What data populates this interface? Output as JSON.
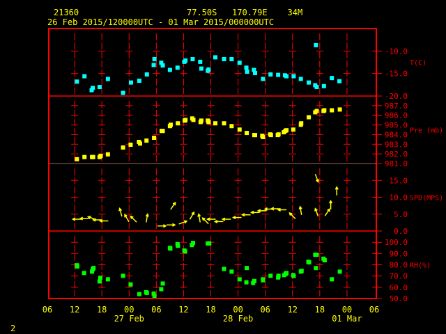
{
  "header": {
    "station_id": "21360",
    "location": "77.50S   170.79E    34M",
    "period": "26 Feb 2015/120000UTC - 01 Mar 2015/000000UTC",
    "page_number": "2"
  },
  "colors": {
    "frame": "#ff0000",
    "text": "#ffff00",
    "temperature": "#00ffff",
    "pressure": "#ffff00",
    "wind": "#ffff00",
    "humidity": "#00ff00",
    "background": "#000000"
  },
  "chart_data": [
    {
      "type": "scatter",
      "ylabel": "T(C)",
      "ylim": [
        -20,
        -5
      ],
      "yticks": [
        {
          "value": -10,
          "label": "-10.0"
        },
        {
          "value": -15,
          "label": "-15.0"
        },
        {
          "value": -20,
          "label": "-20.0"
        }
      ],
      "grid": true,
      "points": [
        [
          "2015-02-26T12:30",
          -16.8
        ],
        [
          "2015-02-26T14:10",
          -15.6
        ],
        [
          "2015-02-26T15:45",
          -18.7
        ],
        [
          "2015-02-26T16:00",
          -18.2
        ],
        [
          "2015-02-26T17:30",
          -18.0
        ],
        [
          "2015-02-26T19:20",
          -16.2
        ],
        [
          "2015-02-26T22:40",
          -19.3
        ],
        [
          "2015-02-27T00:25",
          -17.0
        ],
        [
          "2015-02-27T02:15",
          -16.6
        ],
        [
          "2015-02-27T03:55",
          -15.2
        ],
        [
          "2015-02-27T05:25",
          -13.1
        ],
        [
          "2015-02-27T05:35",
          -11.8
        ],
        [
          "2015-02-27T07:05",
          -12.6
        ],
        [
          "2015-02-27T07:25",
          -13.2
        ],
        [
          "2015-02-27T09:00",
          -14.2
        ],
        [
          "2015-02-27T10:40",
          -13.7
        ],
        [
          "2015-02-27T12:10",
          -12.4
        ],
        [
          "2015-02-27T12:25",
          -12.1
        ],
        [
          "2015-02-27T14:00",
          -11.8
        ],
        [
          "2015-02-27T15:40",
          -12.4
        ],
        [
          "2015-02-27T15:55",
          -13.9
        ],
        [
          "2015-02-27T17:20",
          -14.4
        ],
        [
          "2015-02-27T17:30",
          -14.1
        ],
        [
          "2015-02-27T19:00",
          -11.4
        ],
        [
          "2015-02-27T20:55",
          -11.8
        ],
        [
          "2015-02-27T22:35",
          -11.8
        ],
        [
          "2015-02-28T00:20",
          -12.6
        ],
        [
          "2015-02-28T01:50",
          -13.7
        ],
        [
          "2015-02-28T02:00",
          -14.6
        ],
        [
          "2015-02-28T03:30",
          -14.2
        ],
        [
          "2015-02-28T03:45",
          -14.9
        ],
        [
          "2015-02-28T05:30",
          -16.2
        ],
        [
          "2015-02-28T07:10",
          -15.2
        ],
        [
          "2015-02-28T08:50",
          -15.3
        ],
        [
          "2015-02-28T10:20",
          -15.4
        ],
        [
          "2015-02-28T10:40",
          -15.6
        ],
        [
          "2015-02-28T12:15",
          -15.6
        ],
        [
          "2015-02-28T13:50",
          -16.2
        ],
        [
          "2015-02-28T15:35",
          -17.0
        ],
        [
          "2015-02-28T17:00",
          -17.6
        ],
        [
          "2015-02-28T17:20",
          -18.0
        ],
        [
          "2015-02-28T17:10",
          -8.7
        ],
        [
          "2015-02-28T18:55",
          -17.8
        ],
        [
          "2015-02-28T20:40",
          -16.0
        ],
        [
          "2015-02-28T22:20",
          -16.7
        ]
      ]
    },
    {
      "type": "scatter",
      "ylabel": "Pre (mb)",
      "ylim": [
        981,
        988
      ],
      "yticks": [
        {
          "value": 987,
          "label": "987.0"
        },
        {
          "value": 986,
          "label": "986.0"
        },
        {
          "value": 985,
          "label": "985.0"
        },
        {
          "value": 984,
          "label": "984.0"
        },
        {
          "value": 983,
          "label": "983.0"
        },
        {
          "value": 982,
          "label": "982.0"
        },
        {
          "value": 981,
          "label": "981.0"
        }
      ],
      "grid": true,
      "points": [
        [
          "2015-02-26T12:30",
          981.45
        ],
        [
          "2015-02-26T14:10",
          981.67
        ],
        [
          "2015-02-26T15:50",
          981.67
        ],
        [
          "2015-02-26T16:05",
          981.67
        ],
        [
          "2015-02-26T17:30",
          981.67
        ],
        [
          "2015-02-26T17:45",
          981.8
        ],
        [
          "2015-02-26T19:20",
          981.95
        ],
        [
          "2015-02-26T22:40",
          982.66
        ],
        [
          "2015-02-27T00:20",
          982.95
        ],
        [
          "2015-02-27T02:10",
          983.24
        ],
        [
          "2015-02-27T02:25",
          983.07
        ],
        [
          "2015-02-27T03:50",
          983.38
        ],
        [
          "2015-02-27T05:30",
          983.67
        ],
        [
          "2015-02-27T07:10",
          984.38
        ],
        [
          "2015-02-27T07:25",
          984.38
        ],
        [
          "2015-02-27T09:00",
          984.88
        ],
        [
          "2015-02-27T09:10",
          985.02
        ],
        [
          "2015-02-27T10:45",
          985.17
        ],
        [
          "2015-02-27T12:15",
          985.45
        ],
        [
          "2015-02-27T12:25",
          985.52
        ],
        [
          "2015-02-27T13:55",
          985.67
        ],
        [
          "2015-02-27T14:10",
          985.52
        ],
        [
          "2015-02-27T15:45",
          985.3
        ],
        [
          "2015-02-27T15:55",
          985.45
        ],
        [
          "2015-02-27T17:20",
          985.45
        ],
        [
          "2015-02-27T17:30",
          985.3
        ],
        [
          "2015-02-27T19:00",
          985.17
        ],
        [
          "2015-02-27T20:55",
          985.17
        ],
        [
          "2015-02-27T22:35",
          984.88
        ],
        [
          "2015-02-28T00:20",
          984.52
        ],
        [
          "2015-02-28T01:55",
          984.17
        ],
        [
          "2015-02-28T03:35",
          983.95
        ],
        [
          "2015-02-28T03:45",
          983.95
        ],
        [
          "2015-02-28T05:20",
          983.88
        ],
        [
          "2015-02-28T05:30",
          983.74
        ],
        [
          "2015-02-28T07:05",
          984.02
        ],
        [
          "2015-02-28T07:15",
          983.95
        ],
        [
          "2015-02-28T08:45",
          983.95
        ],
        [
          "2015-02-28T08:55",
          984.02
        ],
        [
          "2015-02-28T10:05",
          984.24
        ],
        [
          "2015-02-28T10:25",
          984.38
        ],
        [
          "2015-02-28T10:40",
          984.45
        ],
        [
          "2015-02-28T12:10",
          984.52
        ],
        [
          "2015-02-28T13:50",
          985.02
        ],
        [
          "2015-02-28T13:55",
          985.17
        ],
        [
          "2015-02-28T15:35",
          985.8
        ],
        [
          "2015-02-28T17:00",
          986.31
        ],
        [
          "2015-02-28T17:20",
          986.45
        ],
        [
          "2015-02-28T18:50",
          986.45
        ],
        [
          "2015-02-28T19:00",
          986.52
        ],
        [
          "2015-02-28T20:40",
          986.52
        ],
        [
          "2015-02-28T22:25",
          986.6
        ]
      ]
    },
    {
      "type": "scatter",
      "ylabel": "SPD(MPS)",
      "ylim": [
        0,
        20
      ],
      "yticks": [
        {
          "value": 15,
          "label": "15.0"
        },
        {
          "value": 10,
          "label": "10.0"
        },
        {
          "value": 5,
          "label": "5.0"
        },
        {
          "value": 0,
          "label": "0.0"
        }
      ],
      "grid": true,
      "marker": "wind-arrow",
      "points": [
        [
          "2015-02-26T12:30",
          3.5,
          270
        ],
        [
          "2015-02-26T14:10",
          3.7,
          270
        ],
        [
          "2015-02-26T15:50",
          3.8,
          290
        ],
        [
          "2015-02-26T17:00",
          3.3,
          270
        ],
        [
          "2015-02-26T18:30",
          3.0,
          270
        ],
        [
          "2015-02-26T22:10",
          5.5,
          345
        ],
        [
          "2015-02-26T23:30",
          3.8,
          330
        ],
        [
          "2015-02-27T01:00",
          3.5,
          315
        ],
        [
          "2015-02-27T03:55",
          3.8,
          10
        ],
        [
          "2015-02-27T07:10",
          1.5,
          90
        ],
        [
          "2015-02-27T09:10",
          1.8,
          90
        ],
        [
          "2015-02-27T09:40",
          7.4,
          35
        ],
        [
          "2015-02-27T11:50",
          2.5,
          70
        ],
        [
          "2015-02-27T13:50",
          4.5,
          30
        ],
        [
          "2015-02-27T15:30",
          3.8,
          350
        ],
        [
          "2015-02-27T16:50",
          3.0,
          315
        ],
        [
          "2015-02-27T18:10",
          3.5,
          270
        ],
        [
          "2015-02-27T19:50",
          2.8,
          270
        ],
        [
          "2015-02-27T21:30",
          3.5,
          270
        ],
        [
          "2015-02-27T23:50",
          4.0,
          270
        ],
        [
          "2015-02-28T01:50",
          4.8,
          270
        ],
        [
          "2015-02-28T03:50",
          5.5,
          270
        ],
        [
          "2015-02-28T05:20",
          6.0,
          270
        ],
        [
          "2015-02-28T06:50",
          6.5,
          270
        ],
        [
          "2015-02-28T08:15",
          6.6,
          270
        ],
        [
          "2015-02-28T09:45",
          6.3,
          270
        ],
        [
          "2015-02-28T12:00",
          4.5,
          315
        ],
        [
          "2015-02-28T13:50",
          6.0,
          350
        ],
        [
          "2015-02-28T17:20",
          5.5,
          340
        ],
        [
          "2015-02-28T19:40",
          5.5,
          35
        ],
        [
          "2015-02-28T20:25",
          7.7,
          0
        ],
        [
          "2015-02-28T21:45",
          11.8,
          0
        ],
        [
          "2015-02-28T17:20",
          15.7,
          160
        ]
      ]
    },
    {
      "type": "scatter",
      "ylabel": "RH(%)",
      "ylim": [
        50,
        110
      ],
      "yticks": [
        {
          "value": 100,
          "label": "100.0"
        },
        {
          "value": 90,
          "label": "90.0"
        },
        {
          "value": 80,
          "label": "80.0"
        },
        {
          "value": 70,
          "label": "70.0"
        },
        {
          "value": 60,
          "label": "60.0"
        },
        {
          "value": 50,
          "label": "50.0"
        }
      ],
      "grid": true,
      "points": [
        [
          "2015-02-26T12:30",
          79.6
        ],
        [
          "2015-02-26T12:35",
          78.5
        ],
        [
          "2015-02-26T14:05",
          72.7
        ],
        [
          "2015-02-26T15:50",
          73.9
        ],
        [
          "2015-02-26T16:00",
          76.0
        ],
        [
          "2015-02-26T16:10",
          77.1
        ],
        [
          "2015-02-26T17:30",
          65.2
        ],
        [
          "2015-02-26T17:40",
          68.3
        ],
        [
          "2015-02-26T19:20",
          67.1
        ],
        [
          "2015-02-26T22:40",
          70.2
        ],
        [
          "2015-02-27T00:20",
          62.5
        ],
        [
          "2015-02-27T02:15",
          53.9
        ],
        [
          "2015-02-27T03:45",
          55.6
        ],
        [
          "2015-02-27T03:55",
          55.0
        ],
        [
          "2015-02-27T05:25",
          54.4
        ],
        [
          "2015-02-27T05:35",
          52.1
        ],
        [
          "2015-02-27T07:05",
          58.3
        ],
        [
          "2015-02-27T07:25",
          63.3
        ],
        [
          "2015-02-27T09:00",
          95.0
        ],
        [
          "2015-02-27T09:05",
          94.4
        ],
        [
          "2015-02-27T10:40",
          98.3
        ],
        [
          "2015-02-27T10:45",
          96.9
        ],
        [
          "2015-02-27T12:10",
          92.7
        ],
        [
          "2015-02-27T12:20",
          91.9
        ],
        [
          "2015-02-27T13:50",
          97.5
        ],
        [
          "2015-02-27T14:05",
          99.4
        ],
        [
          "2015-02-27T17:20",
          99.0
        ],
        [
          "2015-02-27T17:40",
          99.0
        ],
        [
          "2015-02-27T20:55",
          76.3
        ],
        [
          "2015-02-27T22:35",
          73.9
        ],
        [
          "2015-02-28T00:20",
          67.1
        ],
        [
          "2015-02-28T01:55",
          77.1
        ],
        [
          "2015-02-28T01:50",
          64.4
        ],
        [
          "2015-02-28T03:20",
          63.8
        ],
        [
          "2015-02-28T03:35",
          65.6
        ],
        [
          "2015-02-28T05:30",
          67.1
        ],
        [
          "2015-02-28T05:30",
          66.2
        ],
        [
          "2015-02-28T07:10",
          70.2
        ],
        [
          "2015-02-28T08:50",
          68.7
        ],
        [
          "2015-02-28T08:55",
          70.2
        ],
        [
          "2015-02-28T10:10",
          70.8
        ],
        [
          "2015-02-28T10:30",
          71.9
        ],
        [
          "2015-02-28T10:40",
          72.7
        ],
        [
          "2015-02-28T12:10",
          70.8
        ],
        [
          "2015-02-28T12:15",
          70.0
        ],
        [
          "2015-02-28T13:50",
          73.9
        ],
        [
          "2015-02-28T14:00",
          74.6
        ],
        [
          "2015-02-28T15:30",
          82.7
        ],
        [
          "2015-02-28T15:40",
          82.1
        ],
        [
          "2015-02-28T17:00",
          88.9
        ],
        [
          "2015-02-28T17:20",
          88.9
        ],
        [
          "2015-02-28T17:10",
          77.1
        ],
        [
          "2015-02-28T18:50",
          85.4
        ],
        [
          "2015-02-28T19:05",
          84.0
        ],
        [
          "2015-02-28T20:40",
          67.1
        ],
        [
          "2015-02-28T22:25",
          73.9
        ]
      ]
    }
  ],
  "x_axis": {
    "range": [
      "2015-02-26T06:00",
      "2015-03-01T06:00"
    ],
    "tick_labels": [
      "06",
      "12",
      "18",
      "00",
      "06",
      "12",
      "18",
      "00",
      "06",
      "12",
      "18",
      "00",
      "06"
    ],
    "date_labels": [
      {
        "at": "2015-02-27T00:00",
        "label": "27 Feb"
      },
      {
        "at": "2015-02-28T00:00",
        "label": "28 Feb"
      },
      {
        "at": "2015-03-01T00:00",
        "label": "01 Mar"
      }
    ]
  }
}
